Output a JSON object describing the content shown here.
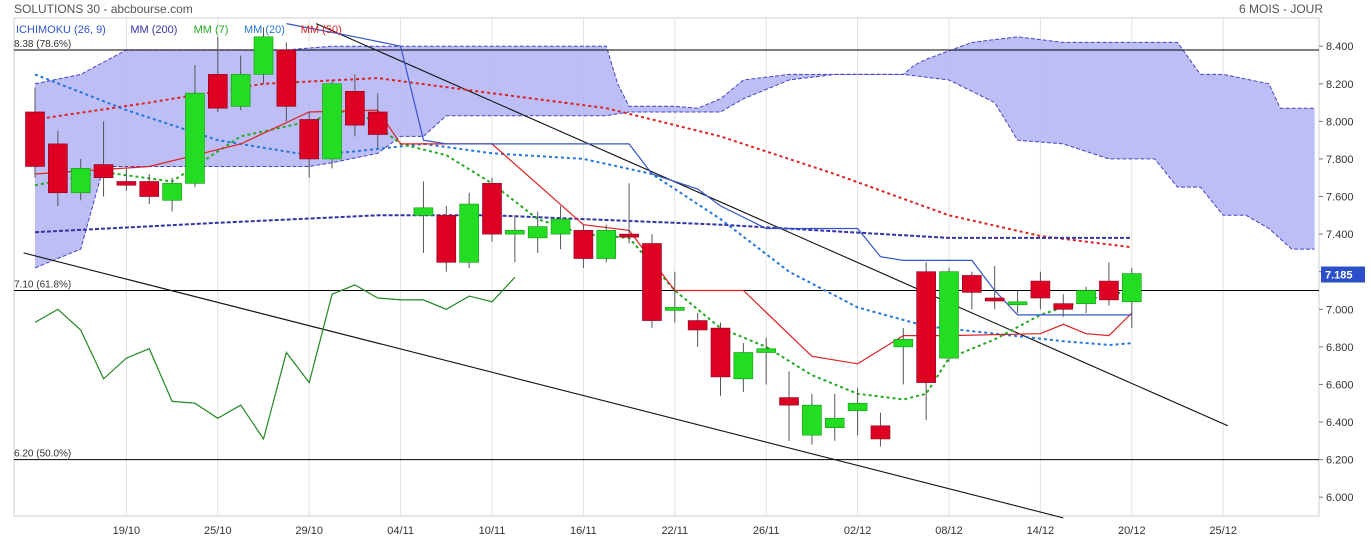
{
  "header": {
    "title": "SOLUTIONS 30 - abcbourse.com",
    "period": "6 MOIS - JOUR"
  },
  "legend": [
    {
      "label": "ICHIMOKU (26, 9)",
      "color": "#3355cc"
    },
    {
      "label": "MM (200)",
      "color": "#3333aa"
    },
    {
      "label": "MM (7)",
      "color": "#22aa22"
    },
    {
      "label": "MM (20)",
      "color": "#2277dd"
    },
    {
      "label": "MM (50)",
      "color": "#dd2222"
    }
  ],
  "fib_levels": [
    {
      "label": "8.38 (78.6%)",
      "value": 8.38
    },
    {
      "label": "7.10 (61.8%)",
      "value": 7.1
    },
    {
      "label": "6.20 (50.0%)",
      "value": 6.2
    }
  ],
  "last_price": "7.185",
  "colors": {
    "up": "#22dd22",
    "down": "#dd0022",
    "cloud": "#b3b3f5",
    "cloud_edge": "#4444cc",
    "accent_box": "#2a4fc8"
  },
  "chart_data": {
    "type": "candlestick",
    "ylim": [
      5.9,
      8.55
    ],
    "y_ticks": [
      6.0,
      6.2,
      6.4,
      6.6,
      6.8,
      7.0,
      7.2,
      7.4,
      7.6,
      7.8,
      8.0,
      8.2,
      8.4
    ],
    "y_tick_labels": [
      "6.000",
      "6.200",
      "6.400",
      "6.600",
      "6.800",
      "7.000",
      "7.200",
      "7.400",
      "7.600",
      "7.800",
      "8.000",
      "8.200",
      "8.400"
    ],
    "x_ticks": [
      {
        "label": "19/10",
        "i": 4
      },
      {
        "label": "25/10",
        "i": 8
      },
      {
        "label": "29/10",
        "i": 12
      },
      {
        "label": "04/11",
        "i": 16
      },
      {
        "label": "10/11",
        "i": 20
      },
      {
        "label": "16/11",
        "i": 24
      },
      {
        "label": "22/11",
        "i": 28
      },
      {
        "label": "26/11",
        "i": 32
      },
      {
        "label": "02/12",
        "i": 36
      },
      {
        "label": "08/12",
        "i": 40
      },
      {
        "label": "14/12",
        "i": 44
      },
      {
        "label": "20/12",
        "i": 48
      },
      {
        "label": "25/12",
        "i": 52
      }
    ],
    "candles": [
      [
        8.05,
        7.76,
        8.18,
        7.7
      ],
      [
        7.88,
        7.62,
        7.95,
        7.55
      ],
      [
        7.62,
        7.75,
        7.8,
        7.58
      ],
      [
        7.77,
        7.7,
        8.0,
        7.6
      ],
      [
        7.68,
        7.66,
        7.75,
        7.63
      ],
      [
        7.68,
        7.6,
        7.72,
        7.56
      ],
      [
        7.58,
        7.67,
        7.7,
        7.52
      ],
      [
        7.67,
        8.15,
        8.3,
        7.65
      ],
      [
        8.25,
        8.07,
        8.45,
        8.05
      ],
      [
        8.08,
        8.25,
        8.35,
        8.06
      ],
      [
        8.25,
        8.45,
        8.5,
        8.2
      ],
      [
        8.38,
        8.08,
        8.42,
        8.0
      ],
      [
        8.01,
        7.8,
        8.05,
        7.7
      ],
      [
        7.8,
        8.2,
        8.22,
        7.75
      ],
      [
        8.16,
        7.98,
        8.25,
        7.92
      ],
      [
        8.05,
        7.93,
        8.15,
        7.86
      ],
      null,
      [
        7.5,
        7.54,
        7.68,
        7.3
      ],
      [
        7.5,
        7.25,
        7.55,
        7.2
      ],
      [
        7.25,
        7.56,
        7.62,
        7.22
      ],
      [
        7.67,
        7.4,
        7.7,
        7.36
      ],
      [
        7.4,
        7.42,
        7.5,
        7.25
      ],
      [
        7.38,
        7.44,
        7.52,
        7.3
      ],
      [
        7.4,
        7.48,
        7.55,
        7.32
      ],
      [
        7.42,
        7.27,
        7.45,
        7.22
      ],
      [
        7.27,
        7.42,
        7.45,
        7.25
      ],
      [
        7.4,
        7.39,
        7.67,
        7.35
      ],
      [
        7.35,
        6.94,
        7.4,
        6.9
      ],
      [
        7.0,
        7.01,
        7.2,
        6.93
      ],
      [
        6.94,
        6.89,
        6.98,
        6.8
      ],
      [
        6.9,
        6.64,
        6.93,
        6.54
      ],
      [
        6.63,
        6.77,
        6.82,
        6.56
      ],
      [
        6.77,
        6.79,
        6.85,
        6.6
      ],
      [
        6.53,
        6.49,
        6.67,
        6.3
      ],
      [
        6.33,
        6.49,
        6.55,
        6.28
      ],
      [
        6.37,
        6.42,
        6.55,
        6.3
      ],
      [
        6.46,
        6.5,
        6.58,
        6.33
      ],
      [
        6.38,
        6.31,
        6.45,
        6.27
      ],
      [
        6.8,
        6.84,
        6.9,
        6.6
      ],
      [
        7.2,
        6.61,
        7.25,
        6.41
      ],
      [
        6.74,
        7.2,
        7.22,
        6.72
      ],
      [
        7.18,
        7.09,
        7.2,
        7.0
      ],
      [
        7.06,
        7.05,
        7.23,
        7.0
      ],
      [
        7.03,
        7.04,
        7.1,
        6.98
      ],
      [
        7.15,
        7.06,
        7.2,
        7.0
      ],
      [
        7.03,
        7.0,
        7.08,
        6.96
      ],
      [
        7.03,
        7.1,
        7.12,
        6.98
      ],
      [
        7.15,
        7.05,
        7.25,
        7.02
      ],
      [
        7.04,
        7.19,
        7.22,
        6.9
      ]
    ],
    "series": [
      {
        "name": "MM (50)",
        "style": "dashed",
        "color": "#dd2222",
        "points": [
          [
            0,
            8.01
          ],
          [
            5,
            8.1
          ],
          [
            10,
            8.2
          ],
          [
            15,
            8.23
          ],
          [
            20,
            8.15
          ],
          [
            25,
            8.07
          ],
          [
            30,
            7.92
          ],
          [
            35,
            7.72
          ],
          [
            40,
            7.5
          ],
          [
            44,
            7.39
          ],
          [
            48,
            7.33
          ]
        ]
      },
      {
        "name": "MM (200)",
        "style": "dashed",
        "color": "#3333aa",
        "points": [
          [
            0,
            7.41
          ],
          [
            8,
            7.46
          ],
          [
            15,
            7.5
          ],
          [
            20,
            7.5
          ],
          [
            30,
            7.45
          ],
          [
            40,
            7.38
          ],
          [
            48,
            7.38
          ]
        ]
      },
      {
        "name": "MM (20)",
        "style": "dashed",
        "color": "#2277dd",
        "points": [
          [
            0,
            8.25
          ],
          [
            4,
            8.06
          ],
          [
            8,
            7.9
          ],
          [
            12,
            7.82
          ],
          [
            14,
            7.84
          ],
          [
            17,
            7.88
          ],
          [
            20,
            7.83
          ],
          [
            24,
            7.8
          ],
          [
            27,
            7.72
          ],
          [
            30,
            7.48
          ],
          [
            33,
            7.2
          ],
          [
            36,
            7.01
          ],
          [
            39,
            6.91
          ],
          [
            42,
            6.87
          ],
          [
            45,
            6.83
          ],
          [
            47,
            6.81
          ],
          [
            48,
            6.82
          ]
        ]
      },
      {
        "name": "MM (7)",
        "style": "dashed",
        "color": "#22aa22",
        "points": [
          [
            0,
            7.66
          ],
          [
            3,
            7.73
          ],
          [
            6,
            7.68
          ],
          [
            9,
            7.92
          ],
          [
            12,
            8.0
          ],
          [
            14,
            8.07
          ],
          [
            16,
            7.88
          ],
          [
            18,
            7.82
          ],
          [
            20,
            7.67
          ],
          [
            22,
            7.48
          ],
          [
            24,
            7.4
          ],
          [
            26,
            7.38
          ],
          [
            28,
            7.1
          ],
          [
            30,
            6.9
          ],
          [
            32,
            6.8
          ],
          [
            34,
            6.65
          ],
          [
            36,
            6.55
          ],
          [
            38,
            6.52
          ],
          [
            39,
            6.55
          ],
          [
            40,
            6.74
          ],
          [
            42,
            6.84
          ],
          [
            44,
            6.97
          ],
          [
            46,
            7.05
          ],
          [
            48,
            7.1
          ]
        ]
      },
      {
        "name": "ICHIMOKU tenkan",
        "style": "solid",
        "color": "#dd2222",
        "points": [
          [
            0,
            7.72
          ],
          [
            5,
            7.76
          ],
          [
            9,
            7.88
          ],
          [
            12,
            8.05
          ],
          [
            15,
            8.06
          ],
          [
            16,
            7.88
          ],
          [
            20,
            7.88
          ],
          [
            24,
            7.45
          ],
          [
            26,
            7.42
          ],
          [
            28,
            7.1
          ],
          [
            31,
            7.1
          ],
          [
            34,
            6.75
          ],
          [
            36,
            6.71
          ],
          [
            38,
            6.86
          ],
          [
            40,
            6.86
          ],
          [
            44,
            6.87
          ],
          [
            45,
            6.92
          ],
          [
            46,
            6.87
          ],
          [
            47,
            6.86
          ],
          [
            48,
            6.98
          ]
        ]
      },
      {
        "name": "ICHIMOKU kijun",
        "style": "solid",
        "color": "#3355cc",
        "points": [
          [
            11,
            8.52
          ],
          [
            14,
            8.45
          ],
          [
            16,
            8.4
          ],
          [
            17,
            7.9
          ],
          [
            18,
            7.88
          ],
          [
            24,
            7.88
          ],
          [
            26,
            7.88
          ],
          [
            27,
            7.72
          ],
          [
            29,
            7.64
          ],
          [
            30,
            7.55
          ],
          [
            32,
            7.43
          ],
          [
            36,
            7.43
          ],
          [
            37,
            7.28
          ],
          [
            38,
            7.26
          ],
          [
            41,
            7.26
          ],
          [
            42,
            7.1
          ],
          [
            43,
            6.97
          ],
          [
            46,
            6.97
          ],
          [
            48,
            6.97
          ]
        ]
      },
      {
        "name": "ICHIMOKU chikou",
        "style": "solid",
        "color": "#228822",
        "points": [
          [
            0,
            6.93
          ],
          [
            1,
            7.0
          ],
          [
            2,
            6.89
          ],
          [
            3,
            6.63
          ],
          [
            4,
            6.74
          ],
          [
            5,
            6.79
          ],
          [
            6,
            6.51
          ],
          [
            7,
            6.5
          ],
          [
            8,
            6.42
          ],
          [
            9,
            6.49
          ],
          [
            10,
            6.31
          ],
          [
            11,
            6.77
          ],
          [
            12,
            6.61
          ],
          [
            13,
            7.08
          ],
          [
            14,
            7.13
          ],
          [
            15,
            7.06
          ],
          [
            16,
            7.05
          ],
          [
            17,
            7.05
          ],
          [
            18,
            7.0
          ],
          [
            19,
            7.07
          ],
          [
            20,
            7.04
          ],
          [
            21,
            7.17
          ]
        ]
      }
    ],
    "cloud": {
      "span_a": [
        [
          0,
          8.2
        ],
        [
          2,
          8.25
        ],
        [
          4,
          8.38
        ],
        [
          7,
          8.38
        ],
        [
          9,
          8.38
        ],
        [
          11,
          8.38
        ],
        [
          13,
          8.4
        ],
        [
          16,
          8.4
        ],
        [
          20,
          8.4
        ],
        [
          22,
          8.4
        ],
        [
          25,
          8.4
        ],
        [
          25.5,
          8.2
        ],
        [
          26,
          8.08
        ],
        [
          28,
          8.08
        ],
        [
          29,
          8.07
        ],
        [
          30,
          8.12
        ],
        [
          31,
          8.22
        ],
        [
          33,
          8.25
        ],
        [
          35,
          8.25
        ],
        [
          38,
          8.25
        ],
        [
          38.5,
          8.3
        ],
        [
          39,
          8.33
        ],
        [
          41,
          8.42
        ],
        [
          43,
          8.45
        ],
        [
          45,
          8.42
        ],
        [
          50,
          8.42
        ],
        [
          51,
          8.25
        ],
        [
          52,
          8.25
        ],
        [
          54,
          8.2
        ],
        [
          54.5,
          8.07
        ],
        [
          56,
          8.07
        ]
      ],
      "span_b": [
        [
          0,
          7.22
        ],
        [
          2,
          7.32
        ],
        [
          3,
          7.76
        ],
        [
          6,
          7.76
        ],
        [
          10,
          7.76
        ],
        [
          12,
          7.76
        ],
        [
          13,
          7.78
        ],
        [
          15,
          7.83
        ],
        [
          16,
          7.92
        ],
        [
          17,
          7.92
        ],
        [
          18,
          8.03
        ],
        [
          20,
          8.03
        ],
        [
          25,
          8.03
        ],
        [
          26,
          8.05
        ],
        [
          28,
          8.05
        ],
        [
          29,
          8.05
        ],
        [
          30,
          8.05
        ],
        [
          31,
          8.12
        ],
        [
          33,
          8.22
        ],
        [
          35,
          8.25
        ],
        [
          38,
          8.25
        ],
        [
          40,
          8.22
        ],
        [
          42,
          8.1
        ],
        [
          43,
          7.9
        ],
        [
          45,
          7.88
        ],
        [
          47,
          7.8
        ],
        [
          49,
          7.8
        ],
        [
          50,
          7.65
        ],
        [
          51,
          7.65
        ],
        [
          52,
          7.5
        ],
        [
          53,
          7.5
        ],
        [
          54,
          7.43
        ],
        [
          55,
          7.32
        ],
        [
          56,
          7.32
        ]
      ]
    },
    "trendlines": [
      {
        "points": [
          [
            12.3,
            8.52
          ],
          [
            52.2,
            6.38
          ]
        ]
      },
      {
        "points": [
          [
            -0.5,
            7.3
          ],
          [
            45,
            5.89
          ]
        ]
      }
    ]
  }
}
